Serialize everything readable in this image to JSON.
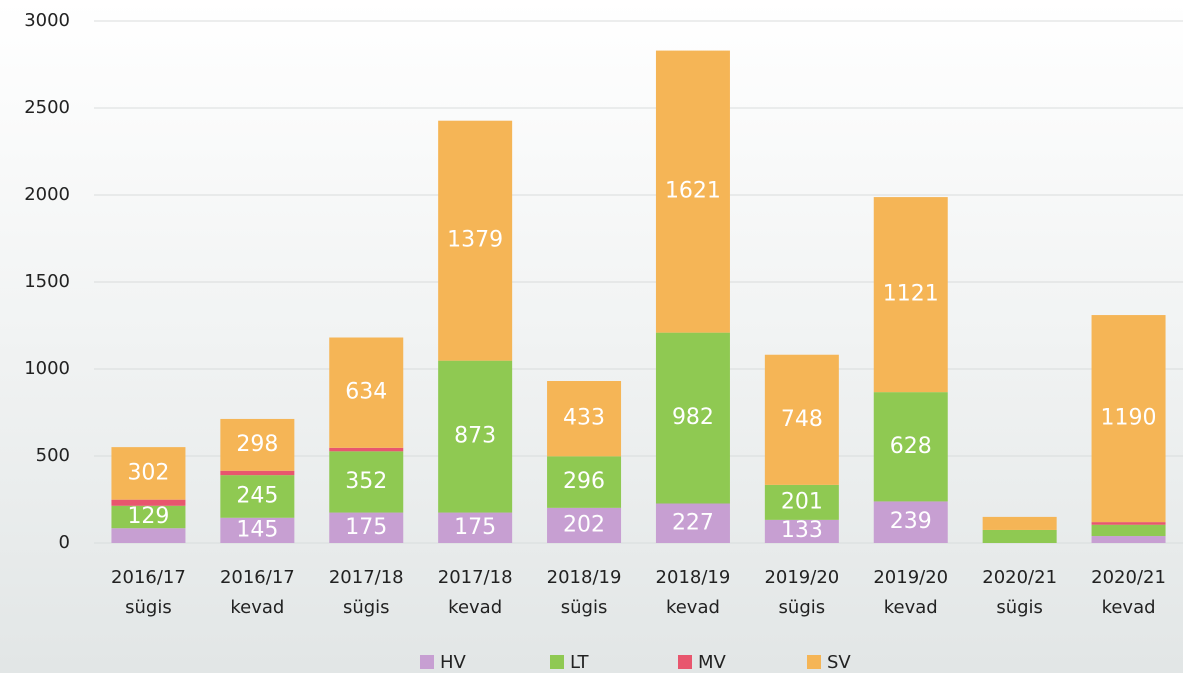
{
  "chart_data": {
    "type": "stacked_bar",
    "categories": [
      [
        "2016/17",
        "sügis"
      ],
      [
        "2016/17",
        "kevad"
      ],
      [
        "2017/18",
        "sügis"
      ],
      [
        "2017/18",
        "kevad"
      ],
      [
        "2018/19",
        "sügis"
      ],
      [
        "2018/19",
        "kevad"
      ],
      [
        "2019/20",
        "sügis"
      ],
      [
        "2019/20",
        "kevad"
      ],
      [
        "2020/21",
        "sügis"
      ],
      [
        "2020/21",
        "kevad"
      ]
    ],
    "series": [
      {
        "name": "HV",
        "color": "#c79fd2",
        "values": [
          85,
          145,
          175,
          175,
          202,
          227,
          133,
          239,
          0,
          40
        ],
        "value_labels": [
          null,
          145,
          175,
          175,
          202,
          227,
          133,
          239,
          null,
          null
        ]
      },
      {
        "name": "LT",
        "color": "#8fc952",
        "values": [
          129,
          245,
          352,
          873,
          296,
          982,
          201,
          628,
          75,
          65
        ],
        "value_labels": [
          129,
          245,
          352,
          873,
          296,
          982,
          201,
          628,
          null,
          null
        ]
      },
      {
        "name": "MV",
        "color": "#e8566e",
        "values": [
          35,
          25,
          20,
          0,
          0,
          0,
          0,
          0,
          0,
          15
        ],
        "value_labels": [
          null,
          null,
          null,
          null,
          null,
          null,
          null,
          null,
          null,
          null
        ]
      },
      {
        "name": "SV",
        "color": "#f5b556",
        "values": [
          302,
          298,
          634,
          1379,
          433,
          1621,
          748,
          1121,
          75,
          1190
        ],
        "value_labels": [
          302,
          298,
          634,
          1379,
          433,
          1621,
          748,
          1121,
          null,
          1190
        ]
      }
    ],
    "ylim": [
      0,
      3000
    ],
    "yticks": [
      0,
      500,
      1000,
      1500,
      2000,
      2500,
      3000
    ],
    "grid": true,
    "legend": "bottom"
  }
}
